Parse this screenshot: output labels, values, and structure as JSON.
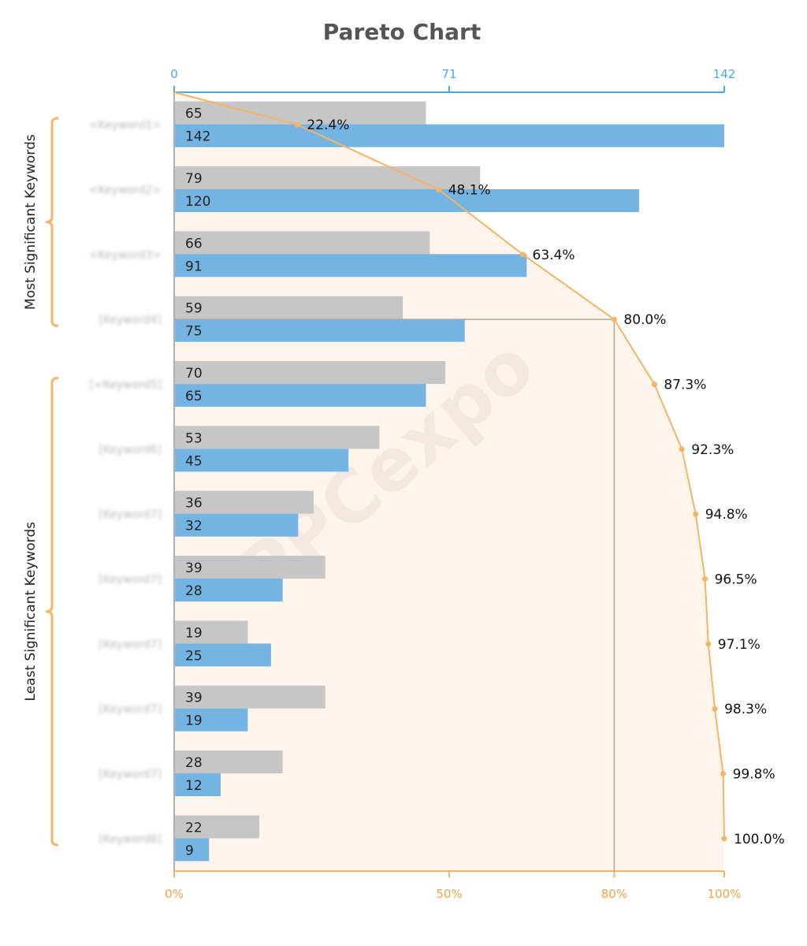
{
  "chart_data": {
    "type": "bar",
    "title": "Pareto Chart",
    "orientation": "horizontal",
    "categories": [
      "<Keyword1>",
      "<Keyword2>",
      "<Keyword3>",
      "[Keyword4]",
      "[<Keyword5]",
      "[Keyword6]",
      "[Keyword7]",
      "[Keyword7]",
      "[Keyword7]",
      "[Keyword7]",
      "[Keyword7]",
      "[Keyword8]"
    ],
    "series": [
      {
        "values": [
          65,
          79,
          66,
          59,
          70,
          53,
          36,
          39,
          19,
          39,
          28,
          22
        ],
        "color": "#c6c6c6"
      },
      {
        "values": [
          142,
          120,
          91,
          75,
          65,
          45,
          32,
          28,
          25,
          19,
          12,
          9
        ],
        "color": "#74b4e2"
      }
    ],
    "cumulative_percent": {
      "values": [
        22.4,
        48.1,
        63.4,
        80.0,
        87.3,
        92.3,
        94.8,
        96.5,
        97.1,
        98.3,
        99.8,
        100.0
      ],
      "labels": [
        "22.4%",
        "48.1%",
        "63.4%",
        "80.0%",
        "87.3%",
        "92.3%",
        "94.8%",
        "96.5%",
        "97.1%",
        "98.3%",
        "99.8%",
        "100.0%"
      ],
      "color": "#f3b465"
    },
    "x_axis_top": {
      "range": [
        0,
        142
      ],
      "ticks": [
        "0",
        "71",
        "142"
      ],
      "color": "#49a9dc"
    },
    "x_axis_bottom": {
      "range": [
        0,
        100
      ],
      "ticks": [
        "0%",
        "50%",
        "80%",
        "100%"
      ],
      "color": "#f0a24a"
    },
    "groups": [
      {
        "label": "Most Significant Keywords",
        "from": 0,
        "to": 3
      },
      {
        "label": "Least Significant Keywords",
        "from": 4,
        "to": 11
      }
    ],
    "threshold_percent": 80,
    "watermark": "PPCexpo",
    "grid": false,
    "legend": "none"
  }
}
